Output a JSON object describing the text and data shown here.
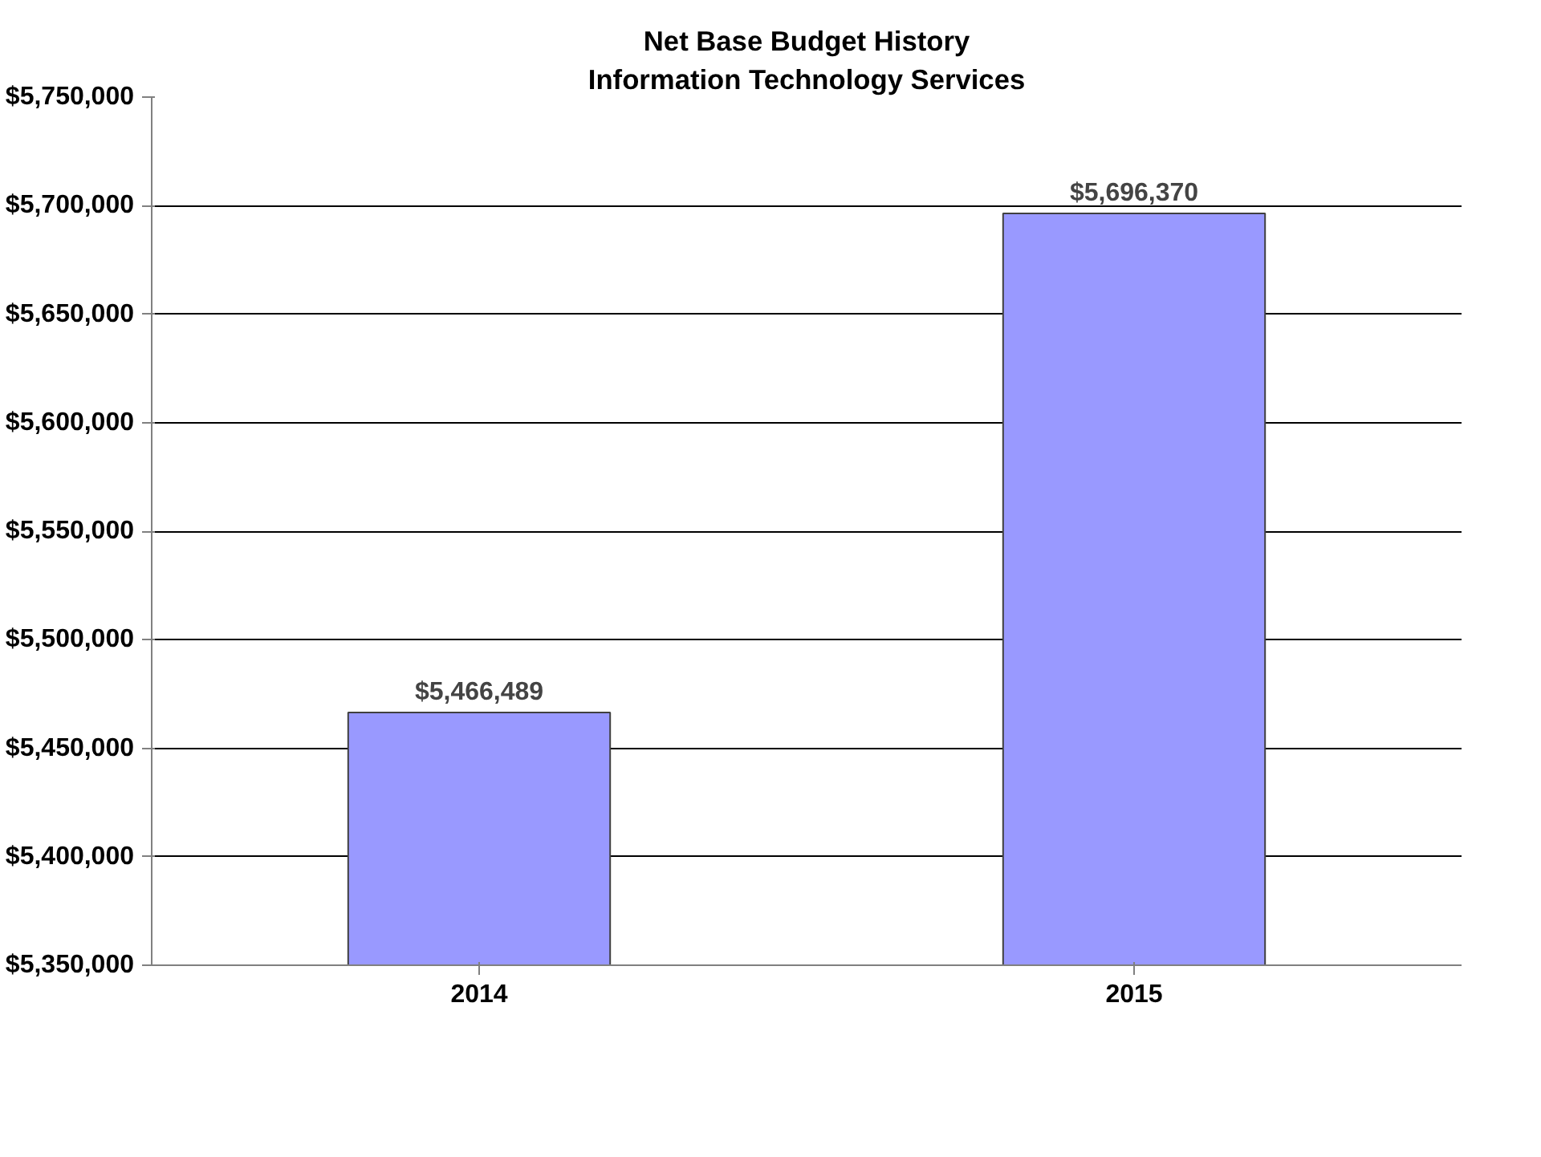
{
  "chart_data": {
    "type": "bar",
    "title": "Net Base Budget History",
    "subtitle": "Information Technology Services",
    "categories": [
      "2014",
      "2015"
    ],
    "values": [
      5466489,
      5696370
    ],
    "value_labels": [
      "$5,466,489",
      "$5,696,370"
    ],
    "color": "#9999ff",
    "ylim": [
      5350000,
      5750000
    ],
    "yticks": [
      {
        "value": 5350000,
        "label": "$5,350,000"
      },
      {
        "value": 5400000,
        "label": "$5,400,000"
      },
      {
        "value": 5450000,
        "label": "$5,450,000"
      },
      {
        "value": 5500000,
        "label": "$5,500,000"
      },
      {
        "value": 5550000,
        "label": "$5,550,000"
      },
      {
        "value": 5600000,
        "label": "$5,600,000"
      },
      {
        "value": 5650000,
        "label": "$5,650,000"
      },
      {
        "value": 5700000,
        "label": "$5,700,000"
      },
      {
        "value": 5750000,
        "label": "$5,750,000"
      }
    ],
    "grid": "y"
  }
}
